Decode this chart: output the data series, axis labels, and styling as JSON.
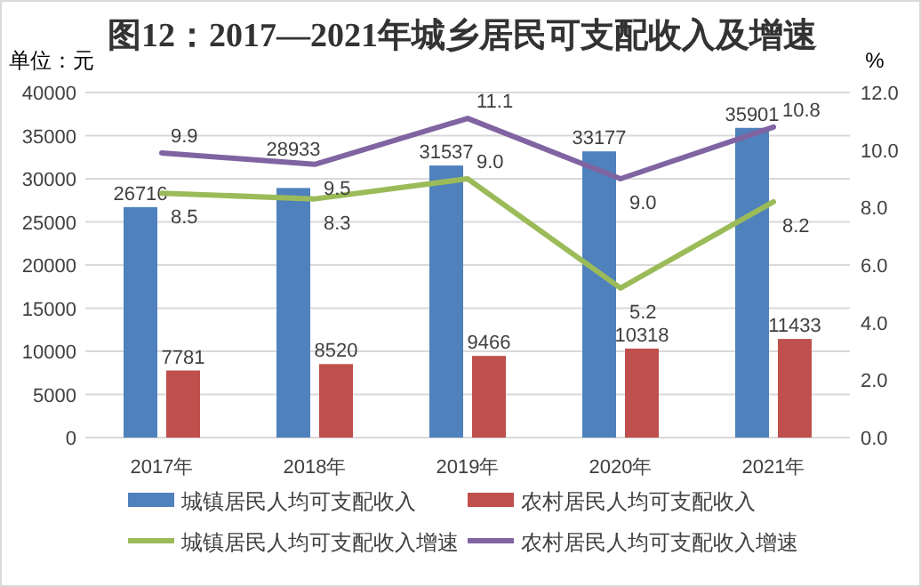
{
  "chart_data": {
    "type": "bar",
    "title": "图12：2017—2021年城乡居民可支配收入及增速",
    "ylabel": "单位：元",
    "y2label": "%",
    "categories": [
      "2017年",
      "2018年",
      "2019年",
      "2020年",
      "2021年"
    ],
    "series": [
      {
        "name": "城镇居民人均可支配收入",
        "color": "#4f81bd",
        "values": [
          26716,
          28933,
          31537,
          33177,
          35901
        ]
      },
      {
        "name": "农村居民人均可支配收入",
        "color": "#c0504d",
        "values": [
          7781,
          8520,
          9466,
          10318,
          11433
        ]
      },
      {
        "name": "城镇居民人均可支配收入增速",
        "type": "line",
        "axis": "y2",
        "color": "#9bbb59",
        "values": [
          8.5,
          8.3,
          9.0,
          5.2,
          8.2
        ],
        "value_labels": [
          "8.5",
          "8.3",
          "9.0",
          "5.2",
          "8.2"
        ]
      },
      {
        "name": "农村居民人均可支配收入增速",
        "type": "line",
        "axis": "y2",
        "color": "#8064a2",
        "values": [
          9.9,
          9.5,
          11.1,
          9.0,
          10.8
        ],
        "value_labels": [
          "9.9",
          "9.5",
          "11.1",
          "9.0",
          "10.8"
        ]
      }
    ],
    "ylim": [
      0,
      40000
    ],
    "yticks": [
      0,
      5000,
      10000,
      15000,
      20000,
      25000,
      30000,
      35000,
      40000
    ],
    "y2lim": [
      0,
      12
    ],
    "y2ticks": [
      {
        "value": 0,
        "label": "0.0"
      },
      {
        "value": 2,
        "label": "2.0"
      },
      {
        "value": 4,
        "label": "4.0"
      },
      {
        "value": 6,
        "label": "6.0"
      },
      {
        "value": 8,
        "label": "8.0"
      },
      {
        "value": 10,
        "label": "10.0"
      },
      {
        "value": 12,
        "label": "12.0"
      }
    ],
    "data_labels": true,
    "grid": "y",
    "legend": "bottom"
  }
}
